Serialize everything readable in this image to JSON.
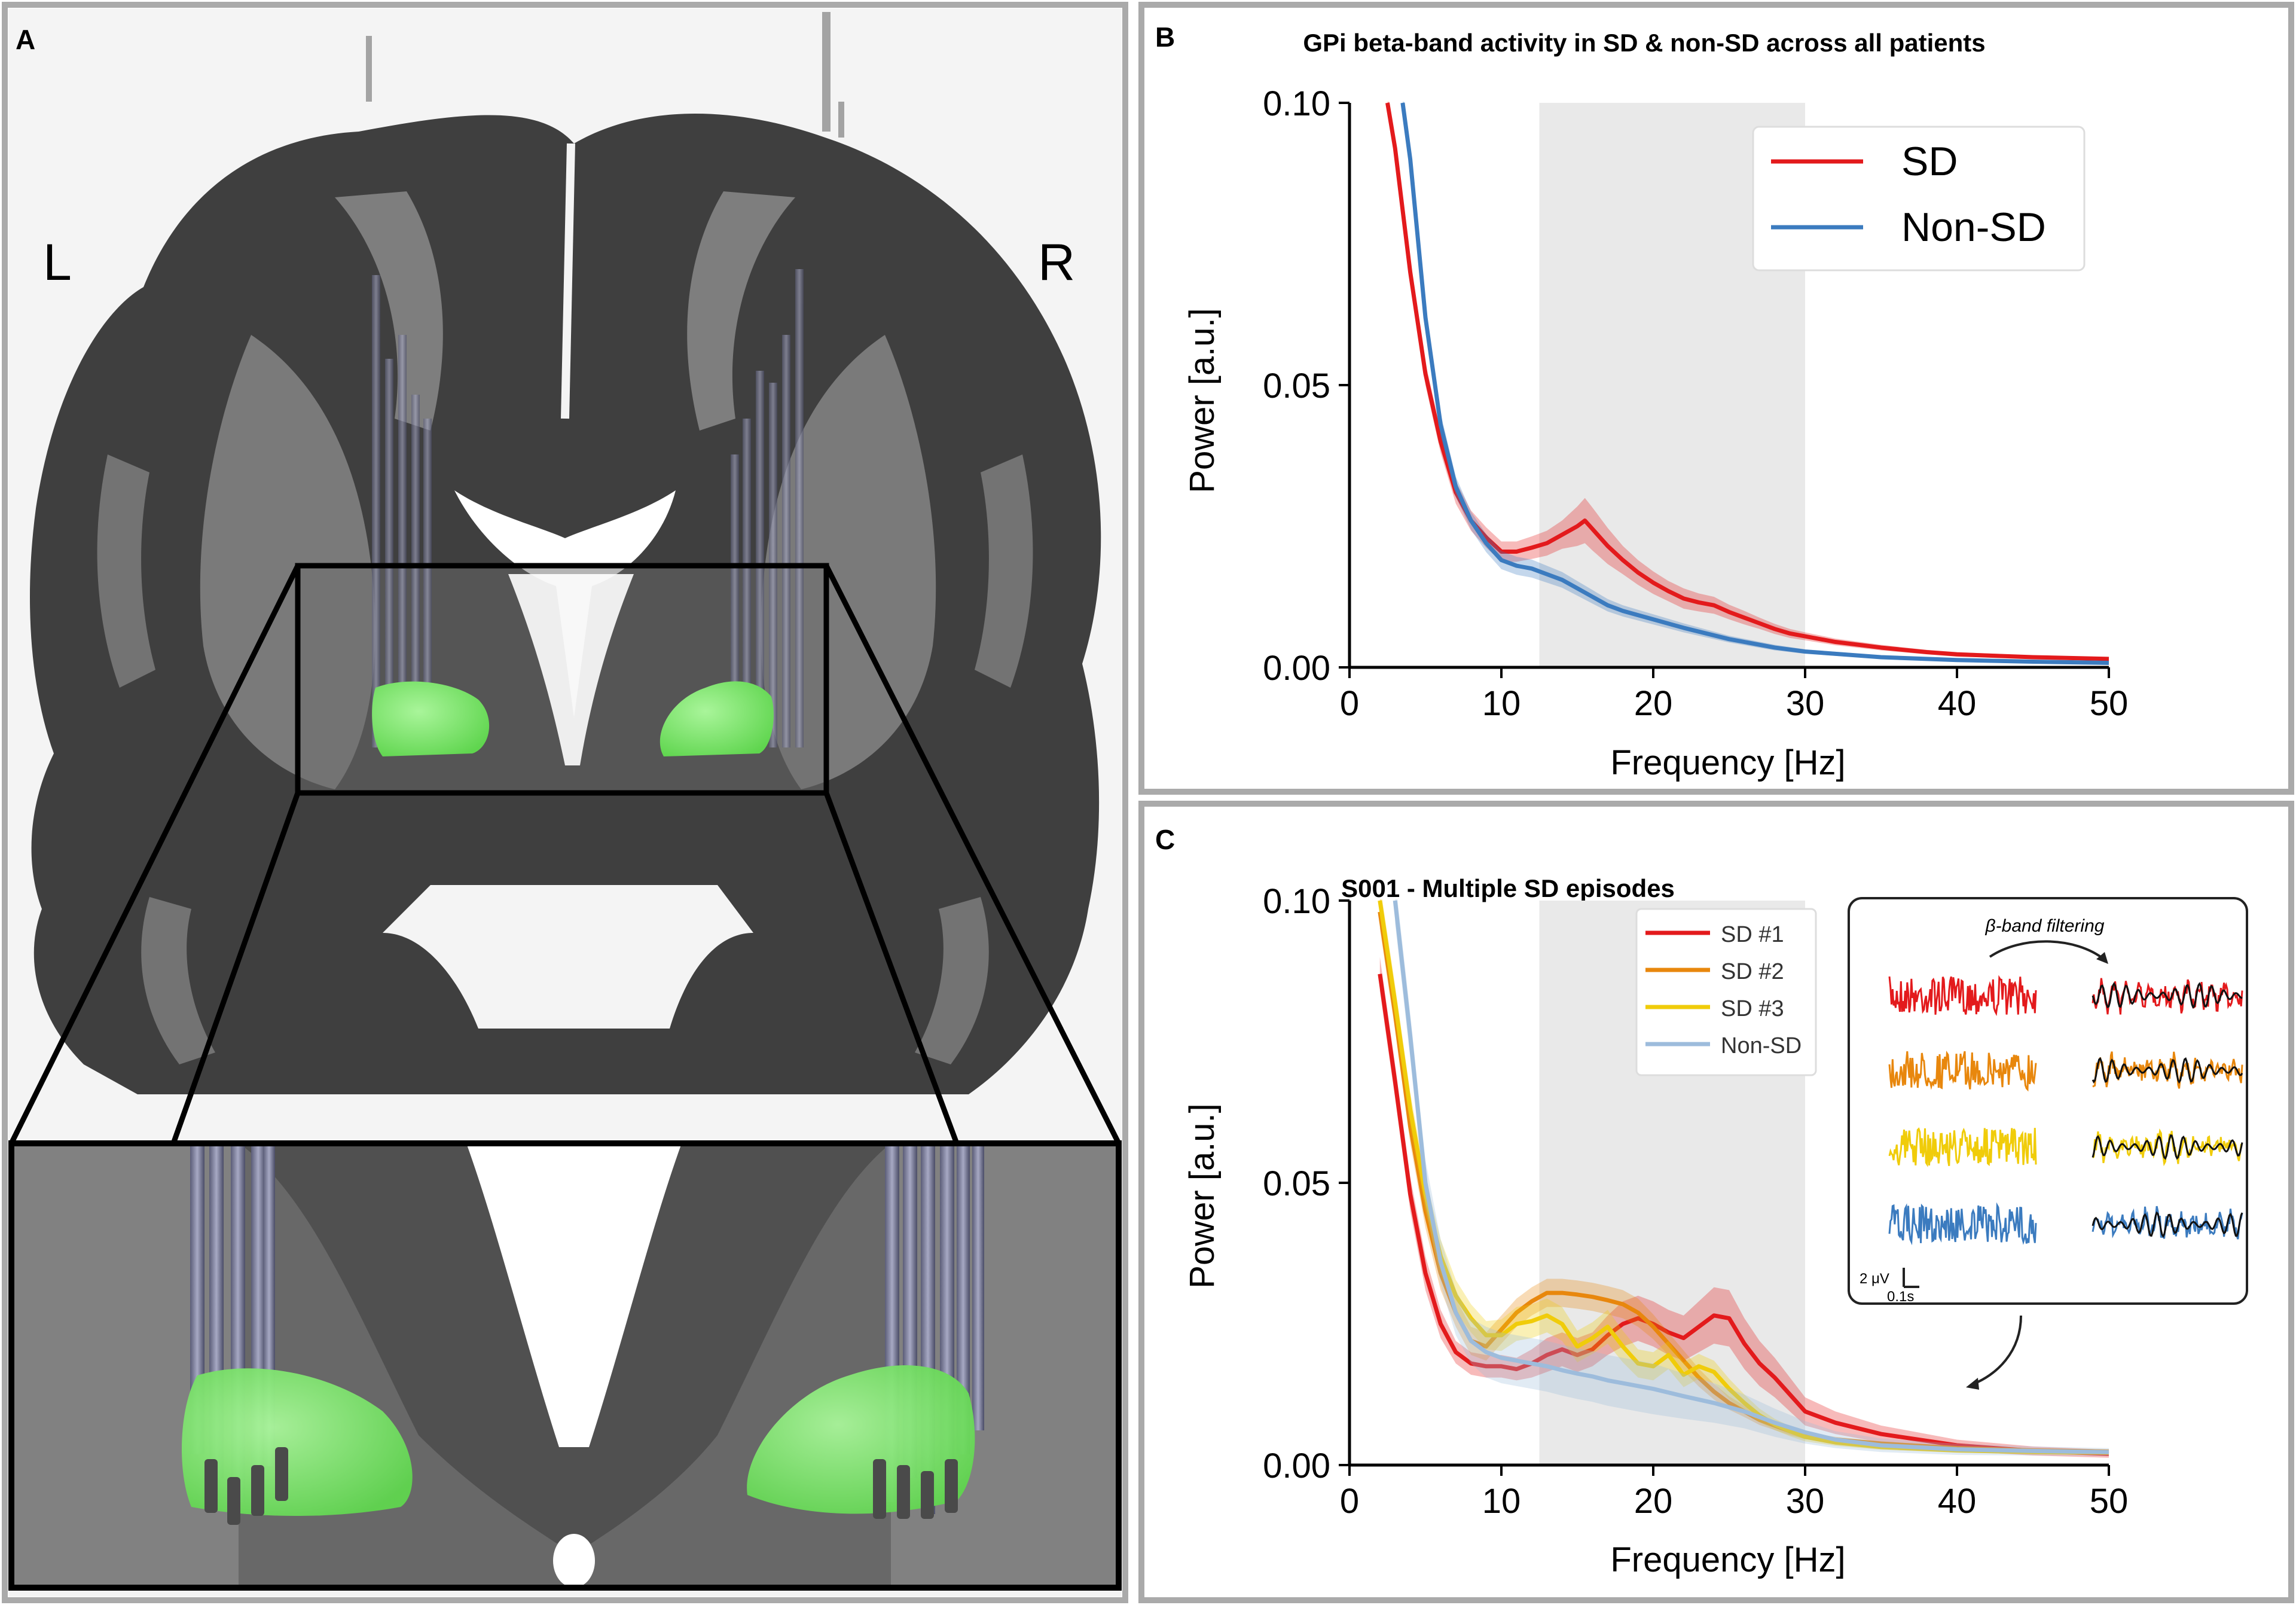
{
  "panels": {
    "a": {
      "letter": "A",
      "left_label": "L",
      "right_label": "R"
    },
    "b": {
      "letter": "B"
    },
    "c": {
      "letter": "C"
    }
  },
  "colors": {
    "sd": "#e31a1c",
    "non_sd": "#3b7bbf",
    "non_sd_light": "#9dbcdc",
    "sd2": "#e8870d",
    "sd3": "#f0cc0a",
    "beta_band": "#e9e9e9",
    "frame": "#aaaaaa",
    "gpi_green": "#80e86f"
  },
  "chart_data": [
    {
      "type": "line",
      "panel": "B",
      "title": "GPi beta-band activity in SD & non-SD across all patients",
      "xlabel": "Frequency [Hz]",
      "ylabel": "Power [a.u.]",
      "xlim": [
        0,
        50
      ],
      "ylim": [
        0,
        0.1
      ],
      "xticks": [
        "0",
        "10",
        "20",
        "30",
        "40",
        "50"
      ],
      "yticks": [
        "0.00",
        "0.05",
        "0.10"
      ],
      "shaded_band": [
        12.5,
        30
      ],
      "legend": "top-right",
      "series": [
        {
          "name": "SD",
          "color": "#e31a1c",
          "x": [
            2.5,
            3,
            4,
            5,
            6,
            7,
            8,
            9,
            10,
            11,
            12,
            13,
            14,
            15,
            15.5,
            16,
            17,
            18,
            19,
            20,
            21,
            22,
            23,
            24,
            25,
            26,
            27,
            28,
            29,
            30,
            32,
            35,
            38,
            40,
            45,
            50
          ],
          "y": [
            0.1,
            0.092,
            0.07,
            0.052,
            0.04,
            0.031,
            0.026,
            0.023,
            0.0205,
            0.0205,
            0.0212,
            0.022,
            0.0235,
            0.025,
            0.026,
            0.0245,
            0.0215,
            0.019,
            0.0168,
            0.015,
            0.0135,
            0.0122,
            0.0115,
            0.011,
            0.0098,
            0.0088,
            0.0078,
            0.0068,
            0.006,
            0.0055,
            0.0045,
            0.0035,
            0.0027,
            0.0023,
            0.0018,
            0.0015
          ],
          "err": [
            0.002,
            0.002,
            0.002,
            0.002,
            0.002,
            0.002,
            0.0018,
            0.0018,
            0.0018,
            0.0018,
            0.002,
            0.0022,
            0.0025,
            0.0035,
            0.004,
            0.0038,
            0.0032,
            0.0025,
            0.0022,
            0.002,
            0.0018,
            0.0018,
            0.0016,
            0.0015,
            0.0013,
            0.0012,
            0.001,
            0.0009,
            0.0008,
            0.0007,
            0.0006,
            0.0005,
            0.0004,
            0.0004,
            0.0003,
            0.0003
          ]
        },
        {
          "name": "Non-SD",
          "color": "#3b7bbf",
          "x": [
            3.5,
            4,
            5,
            6,
            7,
            8,
            9,
            10,
            11,
            12,
            13,
            14,
            15,
            16,
            17,
            18,
            20,
            22,
            25,
            28,
            30,
            35,
            40,
            45,
            50
          ],
          "y": [
            0.1,
            0.09,
            0.062,
            0.043,
            0.032,
            0.026,
            0.022,
            0.019,
            0.018,
            0.0175,
            0.0165,
            0.0155,
            0.014,
            0.0125,
            0.011,
            0.01,
            0.0085,
            0.007,
            0.005,
            0.0035,
            0.0028,
            0.0018,
            0.0013,
            0.001,
            0.0008
          ],
          "err": [
            0.002,
            0.002,
            0.002,
            0.002,
            0.0018,
            0.0016,
            0.0016,
            0.0016,
            0.0016,
            0.0016,
            0.0015,
            0.0014,
            0.0013,
            0.0012,
            0.0011,
            0.001,
            0.0009,
            0.0008,
            0.0006,
            0.0005,
            0.0004,
            0.0003,
            0.0002,
            0.0002,
            0.0002
          ]
        }
      ]
    },
    {
      "type": "line",
      "panel": "C",
      "title": "S001 - Multiple SD episodes",
      "xlabel": "Frequency [Hz]",
      "ylabel": "Power [a.u.]",
      "xlim": [
        0,
        50
      ],
      "ylim": [
        0,
        0.1
      ],
      "xticks": [
        "0",
        "10",
        "20",
        "30",
        "40",
        "50"
      ],
      "yticks": [
        "0.00",
        "0.05",
        "0.10"
      ],
      "shaded_band": [
        12.5,
        30
      ],
      "legend": "top-center",
      "series": [
        {
          "name": "SD #1",
          "color": "#e31a1c",
          "x": [
            2,
            3,
            4,
            5,
            6,
            7,
            8,
            9,
            10,
            11,
            12,
            13,
            14,
            15,
            16,
            17,
            18,
            19,
            20,
            21,
            22,
            23,
            24,
            25,
            26,
            27,
            28,
            29,
            30,
            32,
            35,
            40,
            45,
            50
          ],
          "y": [
            0.087,
            0.068,
            0.048,
            0.034,
            0.025,
            0.02,
            0.018,
            0.0175,
            0.0175,
            0.017,
            0.018,
            0.0195,
            0.0205,
            0.0195,
            0.0205,
            0.023,
            0.025,
            0.026,
            0.025,
            0.0235,
            0.0225,
            0.0245,
            0.0265,
            0.026,
            0.0215,
            0.018,
            0.0155,
            0.0125,
            0.0095,
            0.0075,
            0.0055,
            0.0035,
            0.0025,
            0.002
          ],
          "err": [
            0.003,
            0.003,
            0.003,
            0.003,
            0.0025,
            0.002,
            0.002,
            0.002,
            0.002,
            0.002,
            0.0025,
            0.003,
            0.003,
            0.003,
            0.003,
            0.0035,
            0.004,
            0.004,
            0.004,
            0.004,
            0.004,
            0.0045,
            0.005,
            0.005,
            0.0045,
            0.004,
            0.0035,
            0.003,
            0.0025,
            0.002,
            0.0015,
            0.001,
            0.0008,
            0.0007
          ]
        },
        {
          "name": "SD #2",
          "color": "#e8870d",
          "x": [
            2,
            3,
            4,
            5,
            6,
            7,
            8,
            9,
            10,
            11,
            12,
            13,
            14,
            15,
            16,
            17,
            18,
            19,
            20,
            21,
            22,
            23,
            24,
            25,
            26,
            27,
            28,
            29,
            30,
            32,
            35,
            40,
            45,
            50
          ],
          "y": [
            0.098,
            0.08,
            0.06,
            0.045,
            0.034,
            0.027,
            0.022,
            0.021,
            0.024,
            0.027,
            0.029,
            0.0305,
            0.0305,
            0.0302,
            0.0298,
            0.0292,
            0.0285,
            0.027,
            0.0245,
            0.0215,
            0.0185,
            0.0155,
            0.013,
            0.011,
            0.0095,
            0.008,
            0.007,
            0.006,
            0.0052,
            0.0045,
            0.0038,
            0.003,
            0.0026,
            0.0024
          ],
          "err": [
            0.003,
            0.003,
            0.003,
            0.003,
            0.003,
            0.0025,
            0.0025,
            0.0025,
            0.0025,
            0.0025,
            0.0025,
            0.0025,
            0.0025,
            0.0025,
            0.0025,
            0.0025,
            0.0025,
            0.0025,
            0.0022,
            0.002,
            0.0018,
            0.0016,
            0.0014,
            0.0012,
            0.001,
            0.0009,
            0.0008,
            0.0007,
            0.0006,
            0.0005,
            0.0004,
            0.0003,
            0.0003,
            0.0003
          ]
        },
        {
          "name": "SD #3",
          "color": "#f0cc0a",
          "x": [
            2,
            3,
            4,
            5,
            6,
            7,
            8,
            9,
            10,
            11,
            12,
            13,
            14,
            15,
            16,
            17,
            18,
            19,
            20,
            21,
            22,
            23,
            24,
            25,
            26,
            27,
            28,
            29,
            30,
            32,
            35,
            40,
            45,
            50
          ],
          "y": [
            0.1,
            0.082,
            0.063,
            0.048,
            0.037,
            0.03,
            0.026,
            0.023,
            0.023,
            0.025,
            0.0255,
            0.0265,
            0.025,
            0.021,
            0.0225,
            0.0245,
            0.021,
            0.018,
            0.0175,
            0.0195,
            0.016,
            0.0175,
            0.0165,
            0.0135,
            0.011,
            0.0088,
            0.0072,
            0.006,
            0.005,
            0.004,
            0.0032,
            0.0026,
            0.0023,
            0.0022
          ],
          "err": [
            0.003,
            0.003,
            0.003,
            0.003,
            0.003,
            0.0028,
            0.0025,
            0.0025,
            0.0028,
            0.003,
            0.003,
            0.003,
            0.003,
            0.0028,
            0.0028,
            0.003,
            0.0028,
            0.0025,
            0.0025,
            0.0025,
            0.0022,
            0.0022,
            0.002,
            0.0018,
            0.0015,
            0.0012,
            0.001,
            0.0009,
            0.0008,
            0.0006,
            0.0005,
            0.0004,
            0.0003,
            0.0003
          ]
        },
        {
          "name": "Non-SD",
          "color": "#9dbcdc",
          "x": [
            3,
            4,
            5,
            6,
            7,
            8,
            9,
            10,
            11,
            12,
            13,
            14,
            15,
            16,
            17,
            18,
            19,
            20,
            22,
            24,
            26,
            28,
            30,
            32,
            35,
            40,
            45,
            50
          ],
          "y": [
            0.1,
            0.076,
            0.05,
            0.036,
            0.027,
            0.022,
            0.02,
            0.019,
            0.0185,
            0.018,
            0.0175,
            0.0168,
            0.0162,
            0.0157,
            0.015,
            0.0145,
            0.014,
            0.0135,
            0.0122,
            0.011,
            0.0095,
            0.0075,
            0.0058,
            0.0045,
            0.0035,
            0.0028,
            0.0025,
            0.0023
          ],
          "err": [
            0.004,
            0.004,
            0.004,
            0.004,
            0.004,
            0.004,
            0.0045,
            0.0045,
            0.0045,
            0.0045,
            0.0045,
            0.0045,
            0.0045,
            0.0045,
            0.0045,
            0.0045,
            0.0045,
            0.0045,
            0.004,
            0.0035,
            0.003,
            0.0025,
            0.002,
            0.0015,
            0.0012,
            0.001,
            0.0008,
            0.0007
          ]
        }
      ],
      "inset": {
        "title": "β-band filtering",
        "scalebar_v": "2 μV",
        "scalebar_h": "0.1s",
        "trace_colors": [
          "#e31a1c",
          "#e8870d",
          "#f0cc0a",
          "#3b7bbf"
        ]
      }
    }
  ]
}
